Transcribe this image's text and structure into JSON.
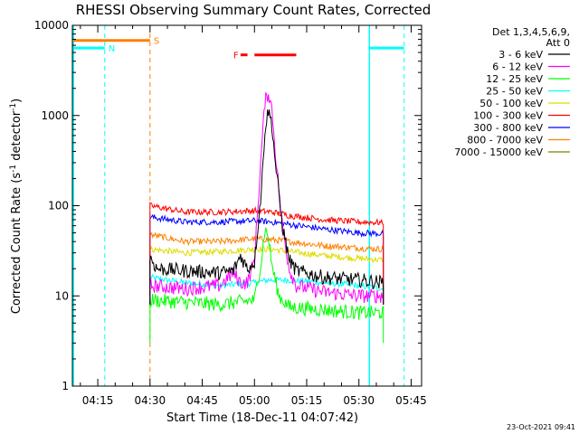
{
  "chart_data": {
    "type": "line",
    "title": "RHESSI Observing Summary Count Rates, Corrected",
    "xlabel": "Start Time (18-Dec-11 04:07:42)",
    "ylabel": "Corrected Count Rate (s^-1 detector^-1)",
    "ylabel_parts": {
      "main": "Corrected Count Rate (s",
      "sup1": "-1",
      "mid": " detector",
      "sup2": "-1",
      "end": ")"
    },
    "y_scale": "log",
    "ylim": [
      1,
      10000
    ],
    "xlim": [
      "04:07:42",
      "05:48:00"
    ],
    "x_ticks": [
      "04:15",
      "04:30",
      "04:45",
      "05:00",
      "05:15",
      "05:30",
      "05:45"
    ],
    "y_ticks": [
      "1",
      "10",
      "100",
      "1000",
      "10000"
    ],
    "legend_title": [
      "Det 1,3,4,5,6,9,",
      "Att 0"
    ],
    "legend_placement": "right",
    "timestamp": "23-Oct-2021 09:41",
    "data_window": [
      "04:30",
      "05:37"
    ],
    "series": [
      {
        "name": "3 - 6 keV",
        "color": "#000000",
        "points": [
          [
            "04:30",
            27
          ],
          [
            "04:32",
            20
          ],
          [
            "04:40",
            19
          ],
          [
            "04:50",
            18
          ],
          [
            "04:54",
            19
          ],
          [
            "04:56",
            28
          ],
          [
            "04:58",
            20
          ],
          [
            "05:00",
            24
          ],
          [
            "05:02",
            150
          ],
          [
            "05:03",
            700
          ],
          [
            "05:04",
            1150
          ],
          [
            "05:05",
            800
          ],
          [
            "05:06",
            300
          ],
          [
            "05:08",
            60
          ],
          [
            "05:10",
            25
          ],
          [
            "05:12",
            19
          ],
          [
            "05:20",
            16
          ],
          [
            "05:30",
            15
          ],
          [
            "05:37",
            14
          ]
        ]
      },
      {
        "name": "6 - 12 keV",
        "color": "#ff00ff",
        "points": [
          [
            "04:30",
            13
          ],
          [
            "04:40",
            12
          ],
          [
            "04:50",
            13
          ],
          [
            "04:54",
            18
          ],
          [
            "04:56",
            14
          ],
          [
            "04:58",
            14
          ],
          [
            "05:00",
            25
          ],
          [
            "05:02",
            400
          ],
          [
            "05:03",
            1400
          ],
          [
            "05:04",
            1800
          ],
          [
            "05:05",
            1200
          ],
          [
            "05:06",
            400
          ],
          [
            "05:08",
            60
          ],
          [
            "05:10",
            20
          ],
          [
            "05:12",
            13
          ],
          [
            "05:20",
            11
          ],
          [
            "05:30",
            10
          ],
          [
            "05:37",
            10
          ]
        ]
      },
      {
        "name": "12 - 25 keV",
        "color": "#00ff00",
        "points": [
          [
            "04:30",
            9
          ],
          [
            "04:40",
            8.5
          ],
          [
            "04:50",
            8
          ],
          [
            "05:00",
            9
          ],
          [
            "05:02",
            25
          ],
          [
            "05:03",
            55
          ],
          [
            "05:04",
            45
          ],
          [
            "05:05",
            22
          ],
          [
            "05:07",
            10
          ],
          [
            "05:10",
            7.5
          ],
          [
            "05:20",
            7
          ],
          [
            "05:30",
            6.5
          ],
          [
            "05:37",
            6.5
          ]
        ]
      },
      {
        "name": "25 - 50 keV",
        "color": "#00ffff",
        "points": [
          [
            "04:30",
            16
          ],
          [
            "04:40",
            14
          ],
          [
            "04:50",
            13
          ],
          [
            "05:00",
            14
          ],
          [
            "05:04",
            15
          ],
          [
            "05:10",
            15
          ],
          [
            "05:20",
            14
          ],
          [
            "05:30",
            13
          ],
          [
            "05:37",
            12
          ]
        ]
      },
      {
        "name": "50 - 100 keV",
        "color": "#dddd00",
        "points": [
          [
            "04:30",
            33
          ],
          [
            "04:40",
            30
          ],
          [
            "04:50",
            31
          ],
          [
            "05:00",
            33
          ],
          [
            "05:05",
            33
          ],
          [
            "05:10",
            31
          ],
          [
            "05:20",
            28
          ],
          [
            "05:30",
            26
          ],
          [
            "05:37",
            25
          ]
        ]
      },
      {
        "name": "100 - 300 keV",
        "color": "#ff0000",
        "points": [
          [
            "04:30",
            100
          ],
          [
            "04:40",
            85
          ],
          [
            "04:50",
            85
          ],
          [
            "05:00",
            88
          ],
          [
            "05:05",
            85
          ],
          [
            "05:10",
            78
          ],
          [
            "05:20",
            70
          ],
          [
            "05:30",
            66
          ],
          [
            "05:37",
            65
          ]
        ]
      },
      {
        "name": "300 - 800 keV",
        "color": "#0000ff",
        "points": [
          [
            "04:30",
            75
          ],
          [
            "04:40",
            66
          ],
          [
            "04:50",
            66
          ],
          [
            "05:00",
            68
          ],
          [
            "05:05",
            66
          ],
          [
            "05:10",
            62
          ],
          [
            "05:20",
            55
          ],
          [
            "05:30",
            50
          ],
          [
            "05:37",
            49
          ]
        ]
      },
      {
        "name": "800 - 7000 keV",
        "color": "#ff8000",
        "points": [
          [
            "04:30",
            48
          ],
          [
            "04:40",
            40
          ],
          [
            "04:50",
            40
          ],
          [
            "05:00",
            43
          ],
          [
            "05:05",
            42
          ],
          [
            "05:10",
            40
          ],
          [
            "05:20",
            36
          ],
          [
            "05:30",
            34
          ],
          [
            "05:37",
            33
          ]
        ]
      },
      {
        "name": "7000 - 15000 keV",
        "color": "#808000",
        "points": []
      }
    ],
    "flags": [
      {
        "label": "N",
        "color": "#00ffff",
        "dashed_lines_at": [
          "04:17",
          "05:43"
        ],
        "solid_lines_at": [
          "04:08",
          "05:33"
        ],
        "bars": [
          [
            "04:08",
            "04:17"
          ],
          [
            "05:33",
            "05:43"
          ]
        ],
        "level": 5600
      },
      {
        "label": "S",
        "color": "#ff8000",
        "dashed_lines_at": [
          "04:30"
        ],
        "bars": [
          [
            "04:08",
            "04:30"
          ]
        ],
        "level": 6800
      },
      {
        "label": "F",
        "color": "#ff0000",
        "bars": [
          [
            "04:56",
            "04:58"
          ],
          [
            "05:00",
            "05:12"
          ]
        ],
        "level": 4700
      }
    ]
  }
}
